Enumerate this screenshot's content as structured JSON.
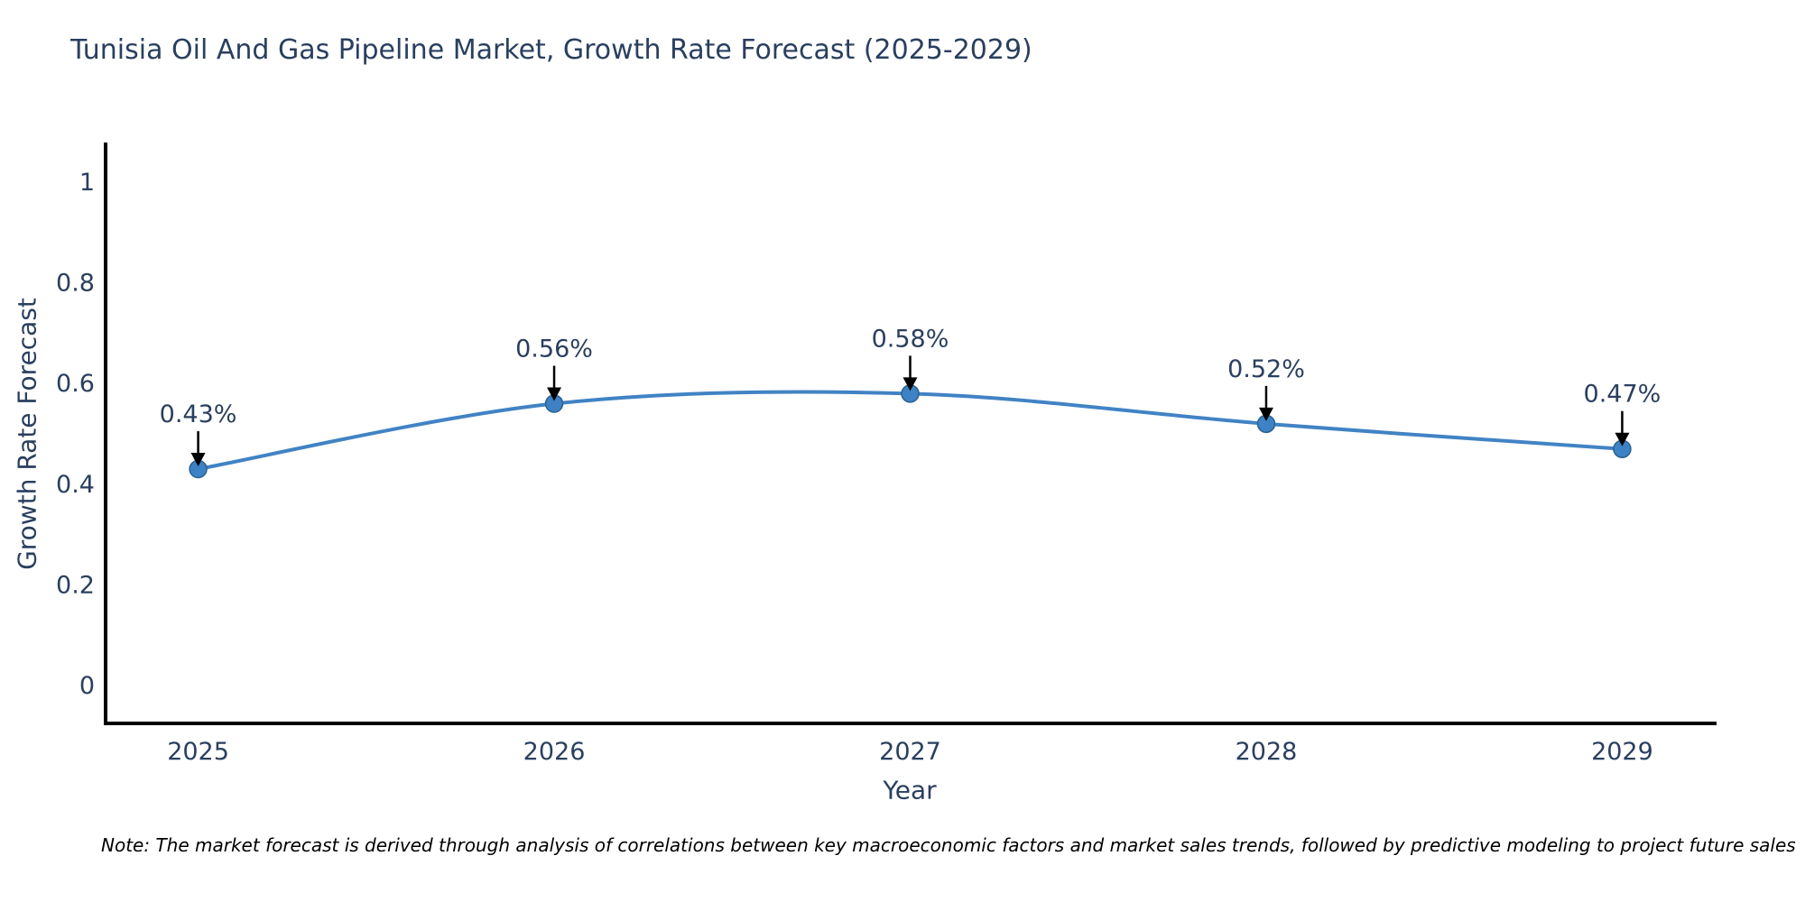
{
  "page": {
    "background": "#ffffff"
  },
  "note": "Note: The market forecast is derived through analysis of correlations between key macroeconomic factors and market sales trends, followed by predictive modeling to project future sales",
  "chart_data": {
    "type": "line",
    "title": "Tunisia Oil And Gas Pipeline Market, Growth Rate Forecast (2025-2029)",
    "xlabel": "Year",
    "ylabel": "Growth Rate Forecast",
    "x": [
      2025,
      2026,
      2027,
      2028,
      2029
    ],
    "xtick_labels": [
      "2025",
      "2026",
      "2027",
      "2028",
      "2029"
    ],
    "series": [
      {
        "name": "Growth Rate Forecast",
        "values": [
          0.43,
          0.56,
          0.58,
          0.52,
          0.47
        ],
        "point_labels": [
          "0.43%",
          "0.56%",
          "0.58%",
          "0.52%",
          "0.47%"
        ]
      }
    ],
    "line_shape": "spline",
    "markers": true,
    "annotation_arrows": true,
    "xlim": [
      2024.74,
      2029.26
    ],
    "ylim": [
      -0.0755,
      1.0755
    ],
    "yticks": [
      0,
      0.2,
      0.4,
      0.6,
      0.8,
      1
    ],
    "ytick_labels": [
      "0",
      "0.2",
      "0.4",
      "0.6",
      "0.8",
      "1"
    ],
    "grid": false,
    "legend": false,
    "colors": {
      "line": "#4183c4",
      "marker_fill": "#3d82c4",
      "marker_border": "#2c628f",
      "axis": "#000000",
      "tick_text": "#2a3f5f",
      "annotation_text": "#2a3f5f",
      "arrow": "#000000",
      "note_text": "#000000"
    }
  }
}
